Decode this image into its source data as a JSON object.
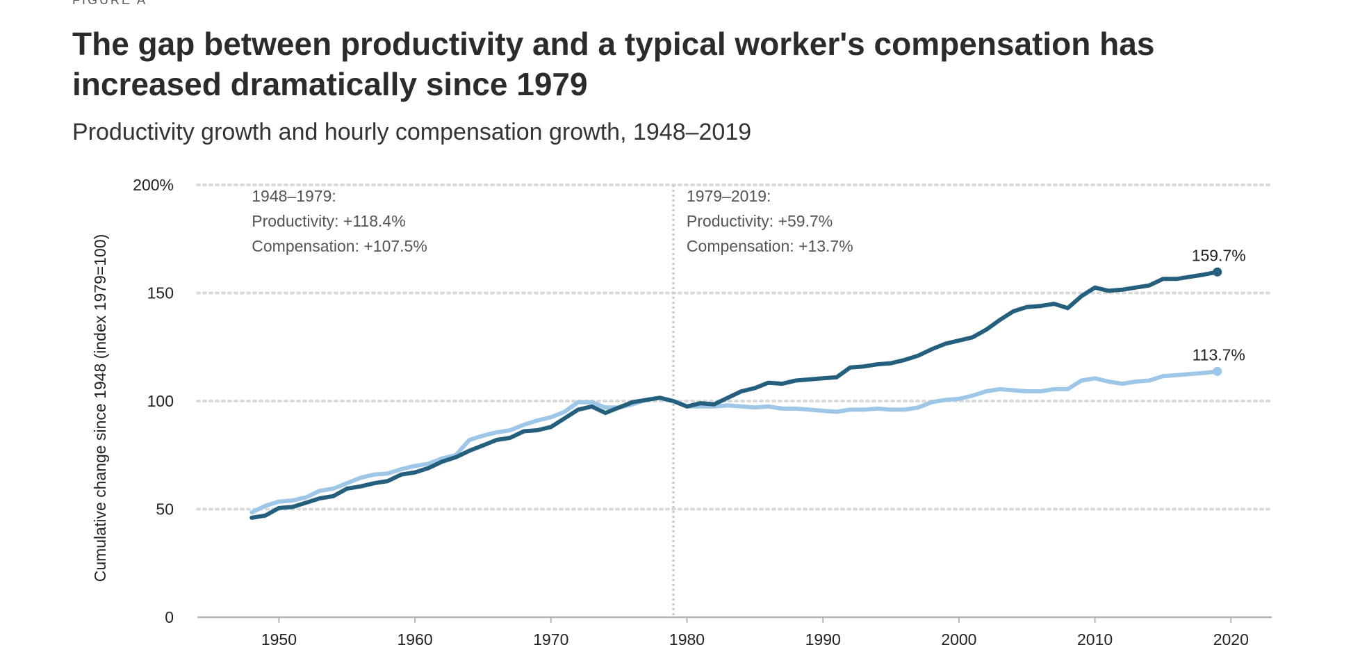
{
  "figure_label": "FIGURE A",
  "title": "The gap between productivity and a typical worker's compensation has increased dramatically since 1979",
  "subtitle": "Productivity growth and hourly compensation growth, 1948–2019",
  "chart_data": {
    "type": "line",
    "ylabel": "Cumulative change since 1948 (index 1979=100)",
    "xlim": [
      1944,
      2023
    ],
    "ylim": [
      0,
      200
    ],
    "x_ticks": [
      1950,
      1960,
      1970,
      1980,
      1990,
      2000,
      2010,
      2020
    ],
    "y_ticks": [
      {
        "value": 0,
        "label": "0"
      },
      {
        "value": 50,
        "label": "50"
      },
      {
        "value": 100,
        "label": "100"
      },
      {
        "value": 150,
        "label": "150"
      },
      {
        "value": 200,
        "label": "200%"
      }
    ],
    "grid": "horizontal dotted",
    "reference_line": {
      "x": 1979
    },
    "colors": {
      "productivity": "#255f7e",
      "compensation": "#9ec6e7"
    },
    "x": [
      1948,
      1949,
      1950,
      1951,
      1952,
      1953,
      1954,
      1955,
      1956,
      1957,
      1958,
      1959,
      1960,
      1961,
      1962,
      1963,
      1964,
      1965,
      1966,
      1967,
      1968,
      1969,
      1970,
      1971,
      1972,
      1973,
      1974,
      1975,
      1976,
      1977,
      1978,
      1979,
      1980,
      1981,
      1982,
      1983,
      1984,
      1985,
      1986,
      1987,
      1988,
      1989,
      1990,
      1991,
      1992,
      1993,
      1994,
      1995,
      1996,
      1997,
      1998,
      1999,
      2000,
      2001,
      2002,
      2003,
      2004,
      2005,
      2006,
      2007,
      2008,
      2009,
      2010,
      2011,
      2012,
      2013,
      2014,
      2015,
      2016,
      2017,
      2018,
      2019
    ],
    "series": [
      {
        "key": "productivity",
        "values": [
          46,
          47,
          50.5,
          51,
          53,
          55,
          56,
          59.5,
          60.5,
          62,
          63,
          66,
          67,
          69,
          72,
          74,
          77,
          79.5,
          82,
          83,
          86,
          86.5,
          88,
          92,
          96,
          97.5,
          94.5,
          97,
          99.5,
          100.5,
          101.5,
          100,
          97.5,
          99,
          98.5,
          101.5,
          104.5,
          106,
          108.5,
          108,
          109.5,
          110,
          110.5,
          111,
          115.5,
          116,
          117,
          117.5,
          119,
          121,
          124,
          126.5,
          128,
          129.5,
          133,
          137.5,
          141.5,
          143.5,
          144,
          145,
          143,
          148.5,
          152.5,
          151,
          151.5,
          152.5,
          153.5,
          156.5,
          156.5,
          157.5,
          158.5,
          159.7
        ],
        "end_label": "159.7%"
      },
      {
        "key": "compensation",
        "values": [
          48.5,
          51.5,
          53.5,
          54,
          55.5,
          58.5,
          59.5,
          62,
          64.5,
          66,
          66.5,
          68.5,
          70,
          71,
          73.5,
          75,
          82,
          84,
          85.5,
          86.5,
          89,
          91,
          92.5,
          95,
          99.5,
          99.5,
          97,
          97,
          98.5,
          100.5,
          101.5,
          100,
          97.5,
          97.5,
          97.5,
          98,
          97.5,
          97,
          97.5,
          96.5,
          96.5,
          96,
          95.5,
          95,
          96,
          96,
          96.5,
          96,
          96,
          97,
          99.5,
          100.5,
          101,
          102.5,
          104.5,
          105.5,
          105,
          104.5,
          104.5,
          105.5,
          105.5,
          109.5,
          110.5,
          109,
          108,
          109,
          109.5,
          111.5,
          112,
          112.5,
          113,
          113.7
        ],
        "end_label": "113.7%"
      }
    ],
    "annotations": [
      {
        "x": 1948,
        "lines": [
          "1948–1979:",
          "Productivity: +118.4%",
          "Compensation: +107.5%"
        ]
      },
      {
        "x": 1979,
        "lines": [
          "1979–2019:",
          "Productivity: +59.7%",
          "Compensation: +13.7%"
        ]
      }
    ]
  }
}
